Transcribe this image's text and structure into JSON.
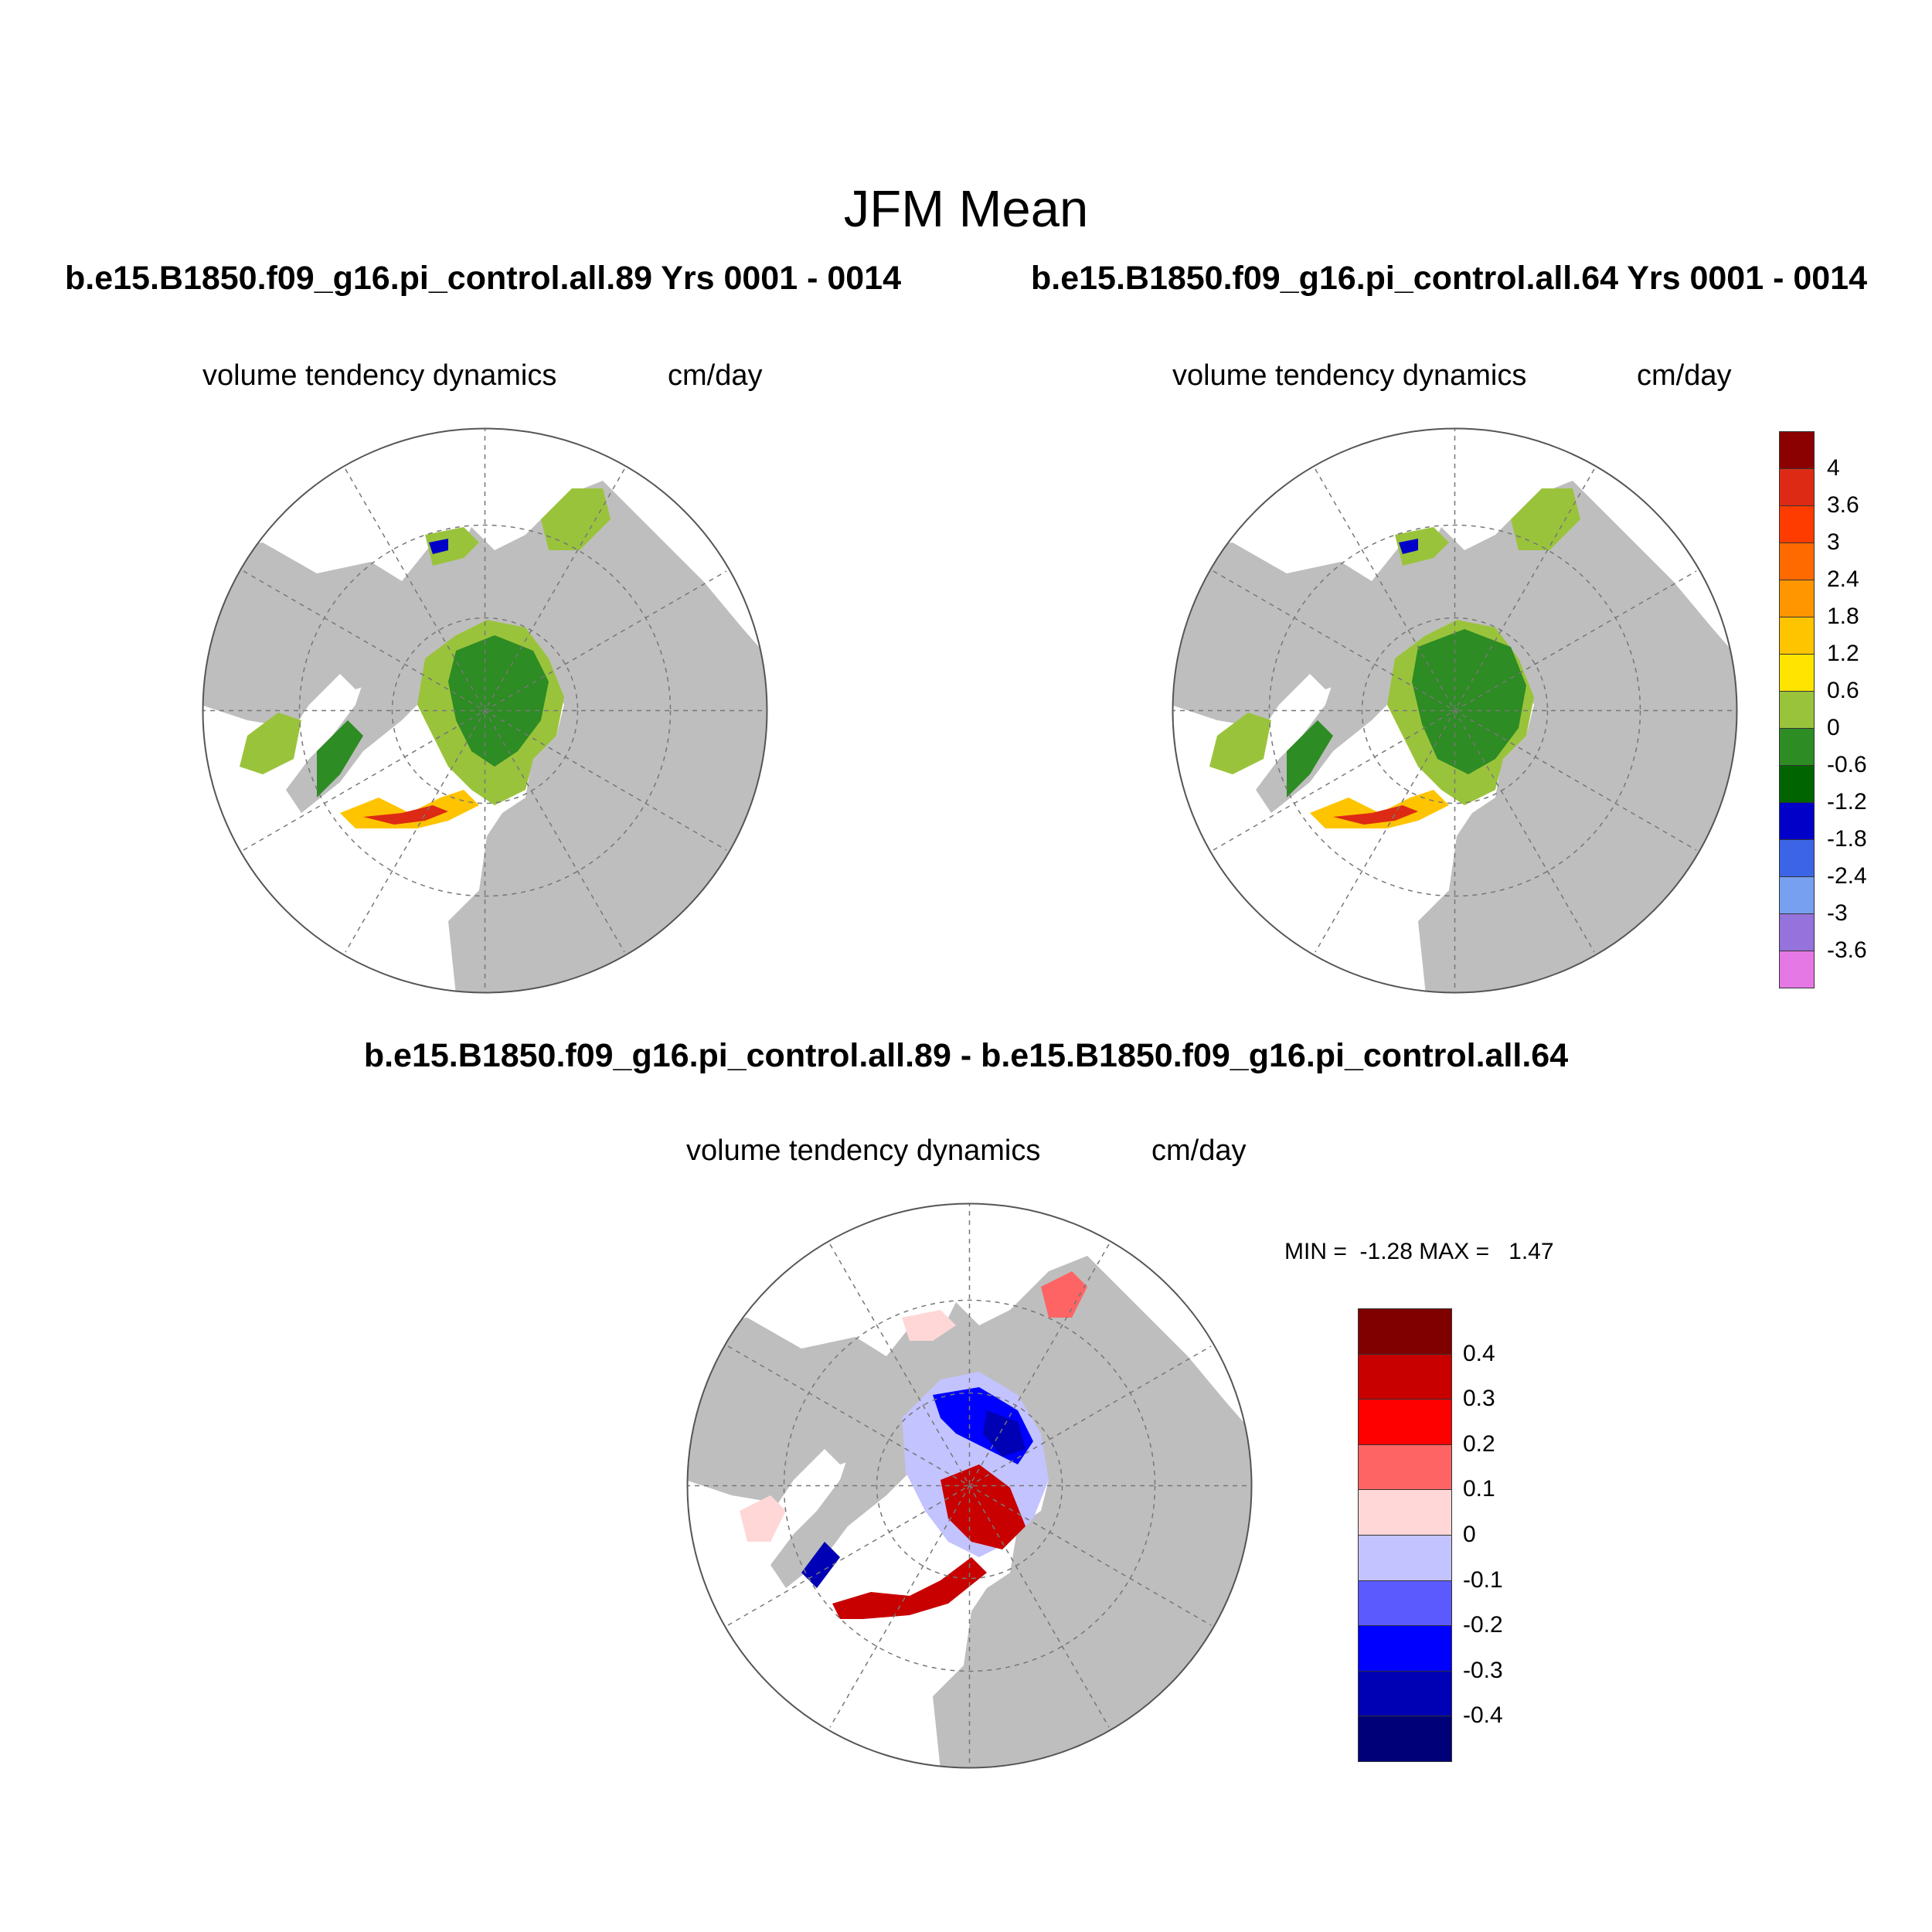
{
  "title": "JFM Mean",
  "panels": [
    {
      "case": "b.e15.B1850.f09_g16.pi_control.all.89  Yrs 0001 - 0014",
      "variable": "volume tendency dynamics",
      "units": "cm/day"
    },
    {
      "case": "b.e15.B1850.f09_g16.pi_control.all.64  Yrs 0001 - 0014",
      "variable": "volume tendency dynamics",
      "units": "cm/day"
    }
  ],
  "diff": {
    "title": "b.e15.B1850.f09_g16.pi_control.all.89 - b.e15.B1850.f09_g16.pi_control.all.64",
    "variable": "volume tendency dynamics",
    "units": "cm/day",
    "min_label": "MIN =",
    "min_value": "-1.28",
    "max_label": "MAX =",
    "max_value": "1.47"
  },
  "colorbar_main": {
    "labels": [
      "4",
      "3.6",
      "3",
      "2.4",
      "1.8",
      "1.2",
      "0.6",
      "0",
      "-0.6",
      "-1.2",
      "-1.8",
      "-2.4",
      "-3",
      "-3.6"
    ],
    "colors": [
      "#8b0000",
      "#dd2a14",
      "#ff3c00",
      "#ff6a00",
      "#ff9600",
      "#ffc400",
      "#ffe400",
      "#9ac33c",
      "#2d8c23",
      "#006400",
      "#0000c8",
      "#3c64e6",
      "#78a0f0",
      "#9673dc",
      "#e678e6"
    ]
  },
  "colorbar_diff": {
    "labels": [
      "0.4",
      "0.3",
      "0.2",
      "0.1",
      "0",
      "-0.1",
      "-0.2",
      "-0.3",
      "-0.4"
    ],
    "colors": [
      "#800000",
      "#c80000",
      "#ff0000",
      "#ff6464",
      "#ffd7d7",
      "#c3c3ff",
      "#5a5aff",
      "#0000ff",
      "#0000b4",
      "#000078"
    ]
  },
  "map_colors": {
    "land": "#bebebe",
    "ocean": "#ffffff",
    "grid": "#777777"
  }
}
